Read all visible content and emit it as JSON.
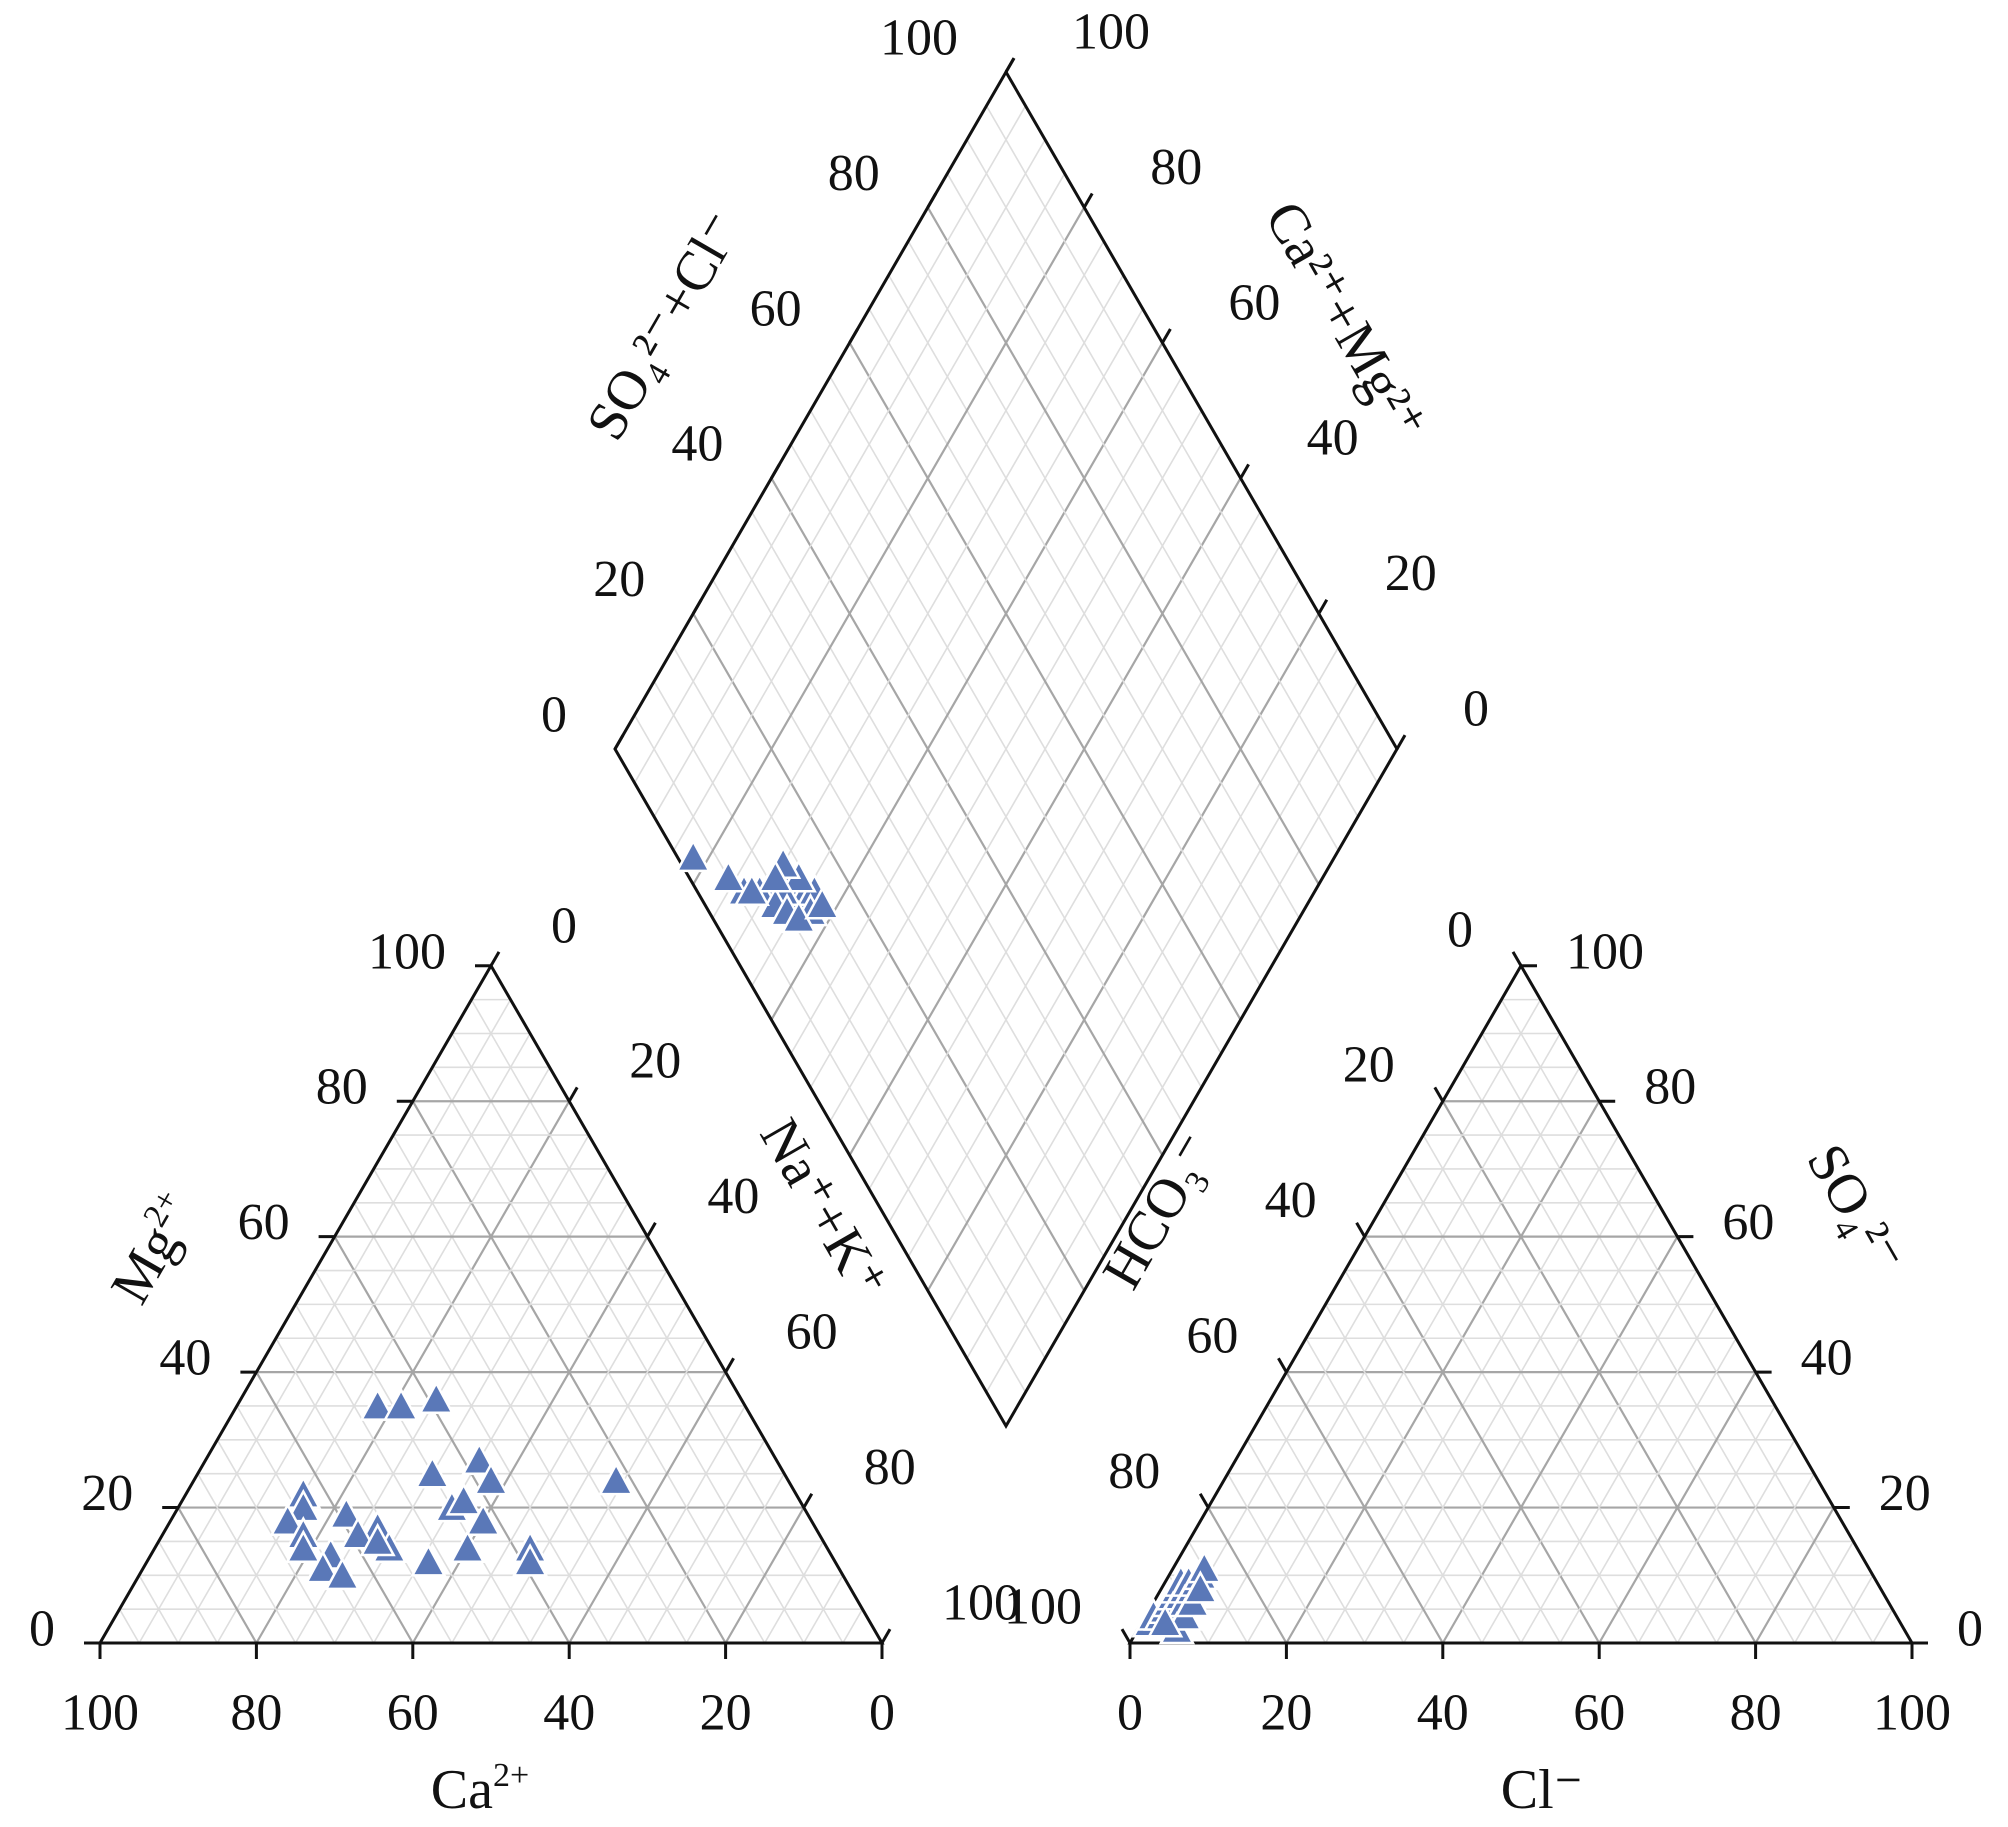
{
  "chart_data": {
    "type": "scatter",
    "subtype": "piper-trilinear",
    "title": "",
    "marker": "triangle",
    "colors": {
      "marker_fill": "#5a78b8",
      "marker_stroke": "#ffffff",
      "outline": "#111111",
      "grid_major": "#a6a6a6",
      "grid_minor": "#dedede"
    },
    "ticks": {
      "cation_mg": [
        "0",
        "20",
        "40",
        "60",
        "80",
        "100"
      ],
      "cation_nak": [
        "0",
        "20",
        "40",
        "60",
        "80",
        "100"
      ],
      "cation_ca": [
        "100",
        "80",
        "60",
        "40",
        "20",
        "0"
      ],
      "anion_hco3": [
        "100",
        "80",
        "60",
        "40",
        "20",
        "0"
      ],
      "anion_so4": [
        "0",
        "20",
        "40",
        "60",
        "80",
        "100"
      ],
      "anion_cl": [
        "0",
        "20",
        "40",
        "60",
        "80",
        "100"
      ],
      "diamond_so4cl": [
        "0",
        "20",
        "40",
        "60",
        "80",
        "100"
      ],
      "diamond_camg": [
        "0",
        "20",
        "40",
        "60",
        "80",
        "100"
      ]
    },
    "axis_titles": {
      "ca": {
        "base": "Ca",
        "sup": "2+"
      },
      "mg": {
        "base": "Mg",
        "sup": "2+"
      },
      "nak": {
        "text": "Na⁺+K⁺"
      },
      "cl": {
        "text": "Cl⁻"
      },
      "hco3": {
        "text": "HCO₃⁻"
      },
      "so4": {
        "text": "SO₄²⁻"
      },
      "so4cl": {
        "text": "SO₄²⁻+Cl⁻"
      },
      "camg": {
        "text": "Ca²⁺+Mg²⁺"
      }
    },
    "cations": [
      {
        "ca": 52,
        "mg": 12,
        "nak": 36
      },
      {
        "ca": 47,
        "mg": 35,
        "nak": 18
      },
      {
        "ca": 44,
        "mg": 35,
        "nak": 21
      },
      {
        "ca": 39,
        "mg": 36,
        "nak": 25
      },
      {
        "ca": 45,
        "mg": 25,
        "nak": 30
      },
      {
        "ca": 38,
        "mg": 27,
        "nak": 35
      },
      {
        "ca": 38,
        "mg": 24,
        "nak": 38
      },
      {
        "ca": 22,
        "mg": 24,
        "nak": 54
      },
      {
        "ca": 63,
        "mg": 22,
        "nak": 15
      },
      {
        "ca": 64,
        "mg": 20,
        "nak": 16
      },
      {
        "ca": 59,
        "mg": 19,
        "nak": 22
      },
      {
        "ca": 67,
        "mg": 18,
        "nak": 15
      },
      {
        "ca": 66,
        "mg": 16,
        "nak": 18
      },
      {
        "ca": 56,
        "mg": 17,
        "nak": 27
      },
      {
        "ca": 59,
        "mg": 16,
        "nak": 25
      },
      {
        "ca": 45,
        "mg": 20,
        "nak": 35
      },
      {
        "ca": 43,
        "mg": 21,
        "nak": 36
      },
      {
        "ca": 42,
        "mg": 18,
        "nak": 40
      },
      {
        "ca": 46,
        "mg": 14,
        "nak": 40
      },
      {
        "ca": 67,
        "mg": 14,
        "nak": 19
      },
      {
        "ca": 64,
        "mg": 13,
        "nak": 23
      },
      {
        "ca": 66,
        "mg": 11,
        "nak": 23
      },
      {
        "ca": 64,
        "mg": 10,
        "nak": 26
      },
      {
        "ca": 38,
        "mg": 14,
        "nak": 48
      },
      {
        "ca": 39,
        "mg": 12,
        "nak": 49
      },
      {
        "ca": 56,
        "mg": 14,
        "nak": 30
      },
      {
        "ca": 57,
        "mg": 15,
        "nak": 28
      }
    ],
    "anions": [
      {
        "hco3": 96,
        "cl": 1,
        "so4": 3
      },
      {
        "hco3": 95,
        "cl": 1,
        "so4": 4
      },
      {
        "hco3": 94,
        "cl": 2,
        "so4": 4
      },
      {
        "hco3": 93,
        "cl": 2,
        "so4": 5
      },
      {
        "hco3": 92,
        "cl": 2,
        "so4": 6
      },
      {
        "hco3": 91,
        "cl": 2,
        "so4": 7
      },
      {
        "hco3": 90,
        "cl": 2,
        "so4": 8
      },
      {
        "hco3": 89,
        "cl": 2,
        "so4": 9
      },
      {
        "hco3": 92,
        "cl": 3,
        "so4": 5
      },
      {
        "hco3": 90,
        "cl": 3,
        "so4": 7
      },
      {
        "hco3": 89,
        "cl": 3,
        "so4": 8
      },
      {
        "hco3": 88,
        "cl": 3,
        "so4": 9
      },
      {
        "hco3": 90,
        "cl": 4,
        "so4": 6
      },
      {
        "hco3": 88,
        "cl": 4,
        "so4": 8
      },
      {
        "hco3": 87,
        "cl": 4,
        "so4": 9
      },
      {
        "hco3": 86,
        "cl": 4,
        "so4": 10
      },
      {
        "hco3": 85,
        "cl": 4,
        "so4": 11
      },
      {
        "hco3": 93,
        "cl": 5,
        "so4": 2
      },
      {
        "hco3": 91,
        "cl": 5,
        "so4": 4
      },
      {
        "hco3": 89,
        "cl": 5,
        "so4": 6
      },
      {
        "hco3": 87,
        "cl": 5,
        "so4": 8
      },
      {
        "hco3": 94,
        "cl": 3,
        "so4": 3
      }
    ],
    "diamond": [
      {
        "so4cl": 13,
        "camg": 64
      },
      {
        "so4cl": 12,
        "camg": 65
      },
      {
        "so4cl": 11,
        "camg": 66
      },
      {
        "so4cl": 13,
        "camg": 66
      },
      {
        "so4cl": 12,
        "camg": 67
      },
      {
        "so4cl": 14,
        "camg": 65
      },
      {
        "so4cl": 10,
        "camg": 68
      },
      {
        "so4cl": 15,
        "camg": 64
      },
      {
        "so4cl": 13,
        "camg": 63
      },
      {
        "so4cl": 9,
        "camg": 70
      },
      {
        "so4cl": 12,
        "camg": 69
      },
      {
        "so4cl": 11,
        "camg": 68
      },
      {
        "so4cl": 14,
        "camg": 67
      },
      {
        "so4cl": 13,
        "camg": 70
      },
      {
        "so4cl": 8,
        "camg": 71
      },
      {
        "so4cl": 9,
        "camg": 68
      },
      {
        "so4cl": 10,
        "camg": 66
      },
      {
        "so4cl": 11,
        "camg": 64
      },
      {
        "so4cl": 6,
        "camg": 73
      },
      {
        "so4cl": 5,
        "camg": 76
      },
      {
        "so4cl": 2,
        "camg": 82
      },
      {
        "so4cl": 11,
        "camg": 70
      },
      {
        "so4cl": 15,
        "camg": 62
      },
      {
        "so4cl": 7,
        "camg": 72
      }
    ]
  }
}
